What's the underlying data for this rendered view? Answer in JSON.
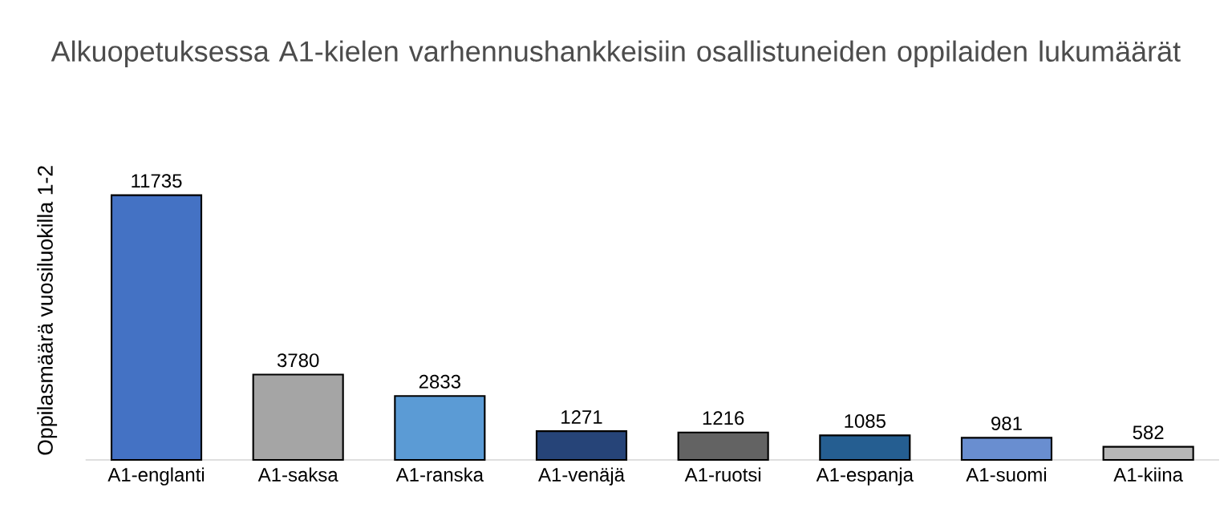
{
  "chart_data": {
    "type": "bar",
    "title": "Alkuopetuksessa A1-kielen varhennushankkeisiin osallistuneiden oppilaiden lukumäärät",
    "ylabel": "Oppilasmäärä vuosiluokilla 1-2",
    "categories": [
      "A1-englanti",
      "A1-saksa",
      "A1-ranska",
      "A1-venäjä",
      "A1-ruotsi",
      "A1-espanja",
      "A1-suomi",
      "A1-kiina"
    ],
    "values": [
      11735,
      3780,
      2833,
      1271,
      1216,
      1085,
      981,
      582
    ],
    "colors": [
      "#4472c4",
      "#a5a5a5",
      "#5b9bd5",
      "#264478",
      "#636363",
      "#255e91",
      "#698ed0",
      "#b7b7b7"
    ],
    "data_labels": true
  }
}
